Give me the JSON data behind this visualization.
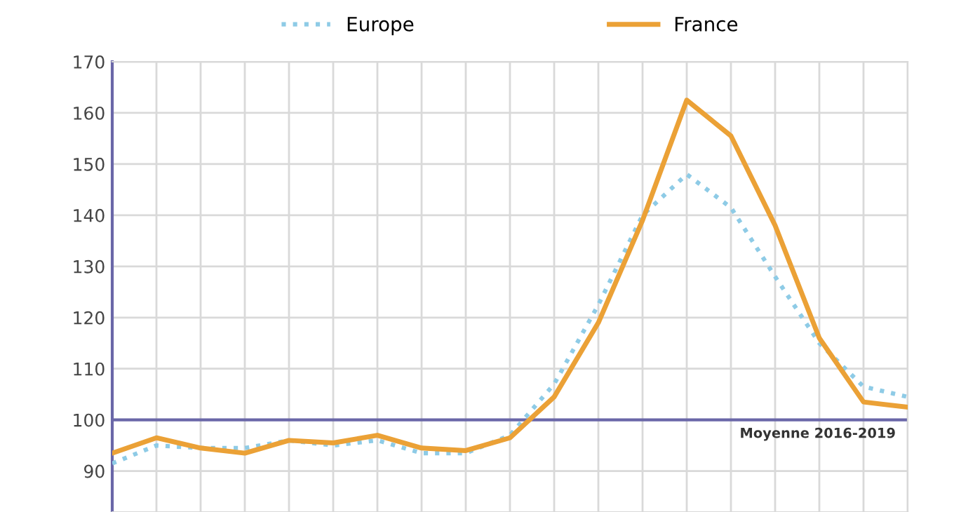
{
  "chart_data": {
    "type": "line",
    "categories": [
      null,
      null,
      null,
      null,
      null,
      null,
      null,
      null,
      null,
      null,
      null,
      null,
      null,
      null,
      null,
      null,
      null,
      null,
      null
    ],
    "series": [
      {
        "name": "Europe",
        "color": "#8ecbe6",
        "line_style": "dotted",
        "values": [
          91.5,
          95,
          94.5,
          94.5,
          96,
          95,
          96,
          93.5,
          93.5,
          97,
          107,
          122.5,
          140,
          148,
          141.5,
          128,
          115,
          106.5,
          104.5
        ]
      },
      {
        "name": "France",
        "color": "#eba136",
        "line_style": "solid",
        "values": [
          93.5,
          96.5,
          94.5,
          93.5,
          96,
          95.5,
          97,
          94.5,
          94,
          96.5,
          104.5,
          119,
          139,
          162.5,
          155.5,
          138,
          116,
          103.5,
          102.5
        ]
      }
    ],
    "ylim": [
      82,
      170
    ],
    "yticks": [
      90,
      100,
      110,
      120,
      130,
      140,
      150,
      160,
      170
    ],
    "grid": true,
    "legend": "top",
    "marker": "none",
    "tick_labels": "y",
    "ref_lines": [
      {
        "axis": "y",
        "value": 100,
        "label": "Moyenne 2016-2019",
        "color": "#6a67a8"
      }
    ]
  }
}
